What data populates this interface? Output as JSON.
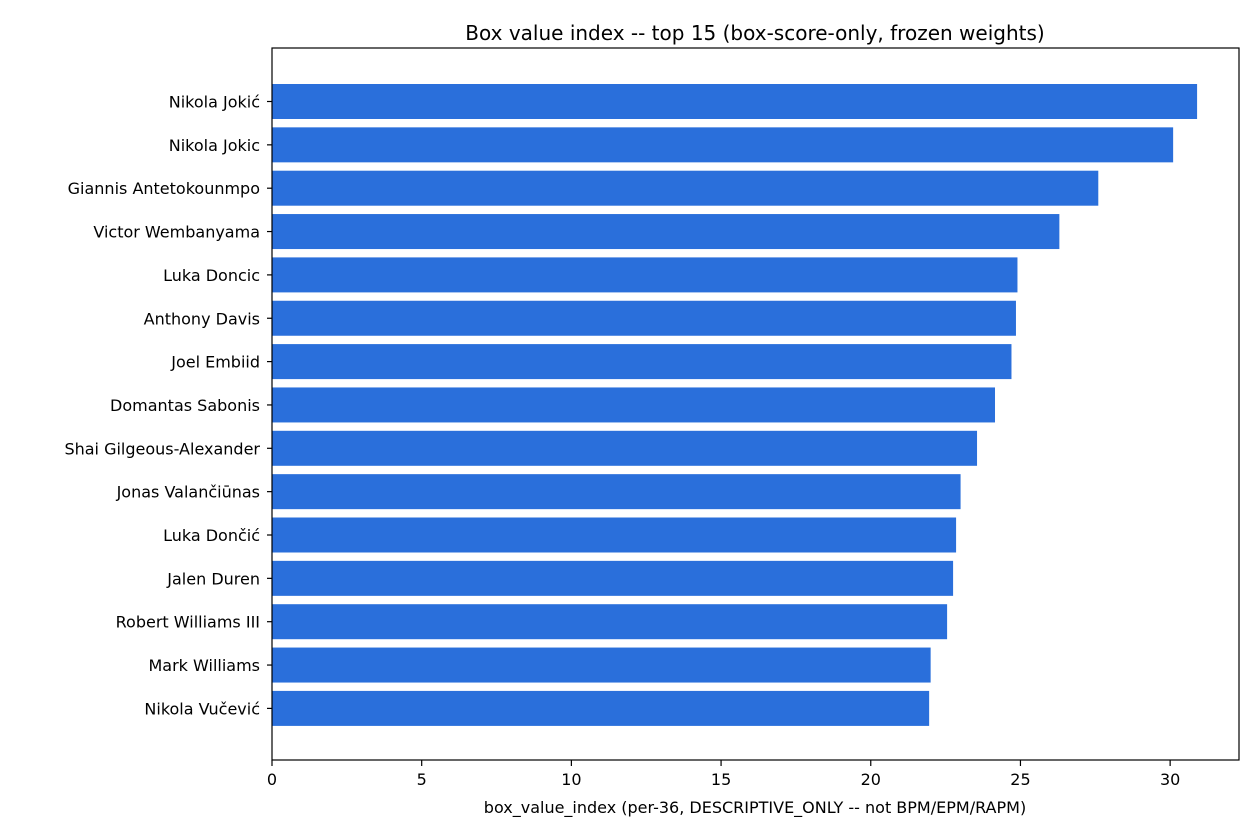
{
  "chart_data": {
    "type": "bar",
    "orientation": "horizontal",
    "title": "Box value index -- top 15 (box-score-only, frozen weights)",
    "xlabel": "box_value_index (per-36, DESCRIPTIVE_ONLY -- not BPM/EPM/RAPM)",
    "ylabel": "",
    "xlim": [
      0,
      32.3
    ],
    "xticks": [
      0,
      5,
      10,
      15,
      20,
      25,
      30
    ],
    "grid": false,
    "bar_color": "#2a6fdb",
    "categories": [
      "Nikola Jokić",
      "Nikola Jokic",
      "Giannis Antetokounmpo",
      "Victor Wembanyama",
      "Luka Doncic",
      "Anthony Davis",
      "Joel Embiid",
      "Domantas Sabonis",
      "Shai Gilgeous-Alexander",
      "Jonas Valančiūnas",
      "Luka Dončić",
      "Jalen Duren",
      "Robert Williams III",
      "Mark Williams",
      "Nikola Vučević"
    ],
    "values": [
      30.9,
      30.1,
      27.6,
      26.3,
      24.9,
      24.85,
      24.7,
      24.15,
      23.55,
      23.0,
      22.85,
      22.75,
      22.55,
      22.0,
      21.95
    ]
  }
}
